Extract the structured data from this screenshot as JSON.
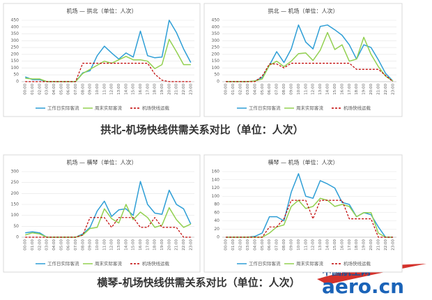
{
  "chart_data": [
    {
      "type": "line",
      "title": "机场 — 拱北（单位：人次）",
      "categories": [
        "00:00",
        "01:00",
        "02:00",
        "03:00",
        "04:00",
        "05:00",
        "06:00",
        "07:00",
        "08:00",
        "09:00",
        "10:00",
        "11:00",
        "12:00",
        "13:00",
        "14:00",
        "15:00",
        "16:00",
        "17:00",
        "18:00",
        "19:00",
        "20:00",
        "21:00",
        "22:00",
        "23:00"
      ],
      "ylim": [
        0,
        450
      ],
      "yticks": [
        0,
        50,
        100,
        150,
        200,
        250,
        300,
        350,
        400,
        450
      ],
      "grid": true,
      "series": [
        {
          "name": "工作日实际客流",
          "color": "#2e9ed6",
          "dash": false,
          "values": [
            35,
            15,
            15,
            0,
            0,
            0,
            0,
            0,
            65,
            80,
            190,
            260,
            210,
            165,
            210,
            180,
            370,
            190,
            175,
            180,
            450,
            360,
            240,
            140
          ]
        },
        {
          "name": "周末实际客流",
          "color": "#92d050",
          "dash": false,
          "values": [
            25,
            20,
            20,
            0,
            0,
            0,
            0,
            0,
            60,
            90,
            120,
            150,
            135,
            160,
            185,
            160,
            160,
            150,
            95,
            125,
            310,
            220,
            125,
            125
          ]
        },
        {
          "name": "机场快线运载",
          "color": "#c00000",
          "dash": true,
          "values": [
            0,
            0,
            0,
            0,
            0,
            0,
            0,
            0,
            135,
            135,
            135,
            135,
            135,
            135,
            135,
            135,
            135,
            135,
            55,
            10,
            0,
            0,
            0,
            0
          ]
        }
      ]
    },
    {
      "type": "line",
      "title": "拱北 — 机场（单位：人次）",
      "categories": [
        "00:00",
        "01:00",
        "02:00",
        "03:00",
        "04:00",
        "05:00",
        "06:00",
        "07:00",
        "08:00",
        "09:00",
        "10:00",
        "11:00",
        "12:00",
        "13:00",
        "14:00",
        "15:00",
        "16:00",
        "17:00",
        "18:00",
        "19:00",
        "20:00",
        "21:00",
        "22:00",
        "23:00"
      ],
      "ylim": [
        0,
        450
      ],
      "yticks": [
        0,
        50,
        100,
        150,
        200,
        250,
        300,
        350,
        400,
        450
      ],
      "grid": true,
      "series": [
        {
          "name": "工作日实际客流",
          "color": "#2e9ed6",
          "dash": false,
          "values": [
            0,
            0,
            0,
            0,
            5,
            30,
            120,
            220,
            140,
            240,
            415,
            290,
            240,
            405,
            415,
            380,
            340,
            270,
            165,
            270,
            250,
            160,
            60,
            5
          ]
        },
        {
          "name": "周末实际客流",
          "color": "#92d050",
          "dash": false,
          "values": [
            0,
            0,
            0,
            0,
            5,
            20,
            120,
            150,
            110,
            150,
            205,
            210,
            155,
            230,
            360,
            235,
            270,
            150,
            165,
            325,
            200,
            110,
            40,
            5
          ]
        },
        {
          "name": "机场快线运载",
          "color": "#c00000",
          "dash": true,
          "values": [
            0,
            0,
            0,
            0,
            0,
            40,
            130,
            130,
            100,
            135,
            135,
            135,
            135,
            135,
            135,
            135,
            135,
            135,
            90,
            90,
            90,
            90,
            45,
            0
          ]
        }
      ]
    },
    {
      "type": "line",
      "title": "机场 — 横琴（单位：人次）",
      "categories": [
        "00:00",
        "01:00",
        "02:00",
        "03:00",
        "04:00",
        "05:00",
        "06:00",
        "07:00",
        "08:00",
        "09:00",
        "10:00",
        "11:00",
        "12:00",
        "13:00",
        "14:00",
        "15:00",
        "16:00",
        "17:00",
        "18:00",
        "19:00",
        "20:00",
        "21:00",
        "22:00",
        "23:00"
      ],
      "ylim": [
        0,
        300
      ],
      "yticks": [
        0,
        50,
        100,
        150,
        200,
        250,
        300
      ],
      "grid": true,
      "series": [
        {
          "name": "工作日实际客流",
          "color": "#2e9ed6",
          "dash": false,
          "values": [
            20,
            25,
            20,
            0,
            0,
            0,
            0,
            0,
            15,
            45,
            120,
            165,
            95,
            125,
            130,
            100,
            255,
            150,
            110,
            105,
            215,
            150,
            130,
            60
          ]
        },
        {
          "name": "周末实际客流",
          "color": "#92d050",
          "dash": false,
          "values": [
            10,
            20,
            15,
            0,
            0,
            0,
            0,
            0,
            10,
            40,
            45,
            130,
            85,
            65,
            150,
            80,
            115,
            90,
            45,
            55,
            135,
            80,
            45,
            60
          ]
        },
        {
          "name": "机场快线运载",
          "color": "#c00000",
          "dash": true,
          "values": [
            0,
            0,
            0,
            0,
            0,
            0,
            0,
            0,
            10,
            90,
            90,
            90,
            45,
            90,
            90,
            90,
            45,
            45,
            90,
            45,
            45,
            45,
            0,
            0
          ]
        }
      ]
    },
    {
      "type": "line",
      "title": "横琴 — 机场（单位：人次）",
      "categories": [
        "00:00",
        "01:00",
        "02:00",
        "03:00",
        "04:00",
        "05:00",
        "06:00",
        "07:00",
        "08:00",
        "09:00",
        "10:00",
        "11:00",
        "12:00",
        "13:00",
        "14:00",
        "15:00",
        "16:00",
        "17:00",
        "18:00",
        "19:00",
        "20:00",
        "21:00",
        "22:00",
        "23:00"
      ],
      "ylim": [
        0,
        160
      ],
      "yticks": [
        0,
        20,
        40,
        60,
        80,
        100,
        120,
        140,
        160
      ],
      "grid": true,
      "series": [
        {
          "name": "工作日实际客流",
          "color": "#2e9ed6",
          "dash": false,
          "values": [
            0,
            0,
            0,
            0,
            2,
            10,
            50,
            50,
            40,
            110,
            155,
            100,
            95,
            138,
            130,
            120,
            85,
            80,
            50,
            60,
            55,
            25,
            0,
            0
          ]
        },
        {
          "name": "周末实际客流",
          "color": "#92d050",
          "dash": false,
          "values": [
            0,
            0,
            0,
            0,
            0,
            0,
            10,
            25,
            30,
            75,
            90,
            70,
            75,
            95,
            90,
            75,
            80,
            75,
            50,
            60,
            60,
            10,
            0,
            0
          ]
        },
        {
          "name": "机场快线运载",
          "color": "#c00000",
          "dash": true,
          "values": [
            0,
            0,
            0,
            0,
            0,
            0,
            25,
            25,
            45,
            90,
            90,
            90,
            45,
            90,
            90,
            90,
            90,
            45,
            45,
            45,
            45,
            0,
            0,
            0
          ]
        }
      ]
    }
  ],
  "captions": [
    "拱北-机场快线供需关系对比（单位：人次）",
    "横琴-机场快线供需关系对比（单位：人次）"
  ],
  "watermark": {
    "name": "中国航空网",
    "domain": "aero.cn"
  }
}
